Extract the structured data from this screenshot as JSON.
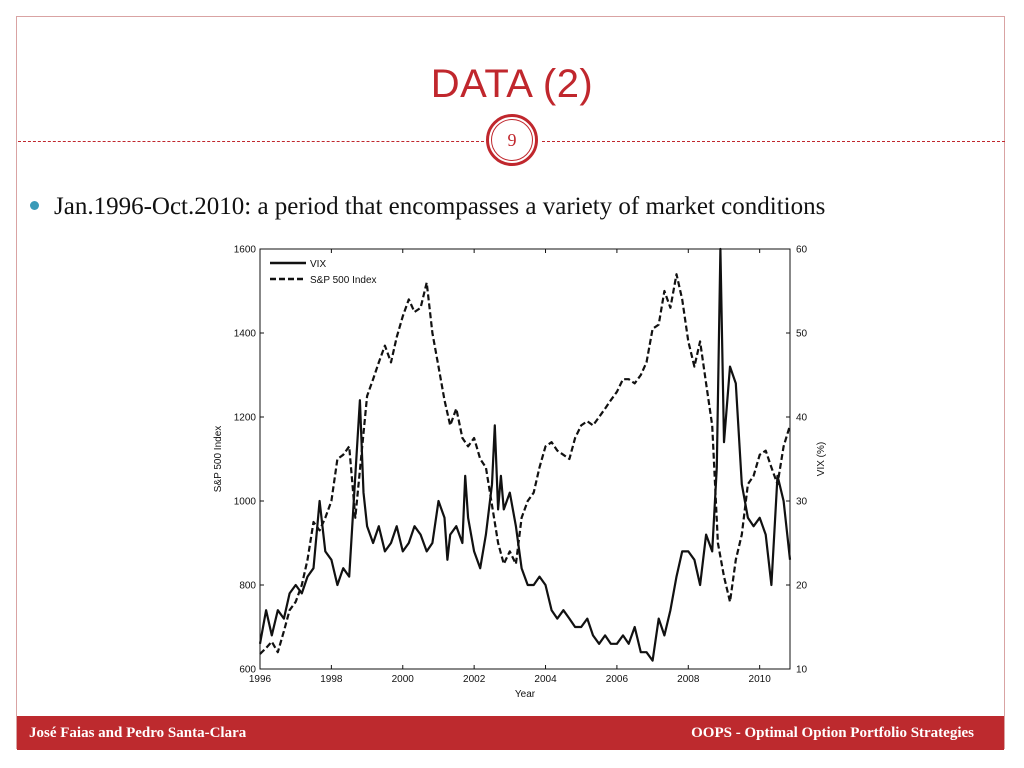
{
  "slide": {
    "title": "DATA (2)",
    "page_number": "9",
    "bullet": "Jan.1996-Oct.2010: a period that encompasses a variety of market conditions",
    "footer_left": "José Faias and Pedro Santa-Clara",
    "footer_right": "OOPS - Optimal Option Portfolio Strategies",
    "accent_color": "#c0272d",
    "bullet_color": "#3b9bb8"
  },
  "chart_data": {
    "type": "line",
    "xlabel": "Year",
    "ylabel": "S&P 500 Index",
    "ylabel_right": "VIX (%)",
    "xlim": [
      1996,
      2010.85
    ],
    "ylim": [
      600,
      1600
    ],
    "ylim_right": [
      10,
      60
    ],
    "x_ticks": [
      1996,
      1998,
      2000,
      2002,
      2004,
      2006,
      2008,
      2010
    ],
    "y_ticks": [
      600,
      800,
      1000,
      1200,
      1400,
      1600
    ],
    "y_ticks_right": [
      10,
      20,
      30,
      40,
      50,
      60
    ],
    "legend_position": "top-left",
    "grid": false,
    "series": [
      {
        "name": "VIX",
        "axis": "right",
        "style": "solid",
        "x": [
          1996.0,
          1996.17,
          1996.33,
          1996.5,
          1996.67,
          1996.83,
          1997.0,
          1997.17,
          1997.33,
          1997.5,
          1997.67,
          1997.83,
          1998.0,
          1998.17,
          1998.33,
          1998.5,
          1998.67,
          1998.8,
          1998.9,
          1999.0,
          1999.17,
          1999.33,
          1999.5,
          1999.67,
          1999.83,
          2000.0,
          2000.17,
          2000.33,
          2000.5,
          2000.67,
          2000.83,
          2001.0,
          2001.17,
          2001.25,
          2001.33,
          2001.5,
          2001.67,
          2001.75,
          2001.83,
          2002.0,
          2002.17,
          2002.33,
          2002.5,
          2002.58,
          2002.67,
          2002.75,
          2002.83,
          2003.0,
          2003.17,
          2003.33,
          2003.5,
          2003.67,
          2003.83,
          2004.0,
          2004.17,
          2004.33,
          2004.5,
          2004.67,
          2004.83,
          2005.0,
          2005.17,
          2005.33,
          2005.5,
          2005.67,
          2005.83,
          2006.0,
          2006.17,
          2006.33,
          2006.5,
          2006.67,
          2006.83,
          2007.0,
          2007.17,
          2007.33,
          2007.5,
          2007.67,
          2007.83,
          2008.0,
          2008.17,
          2008.33,
          2008.5,
          2008.67,
          2008.8,
          2008.9,
          2009.0,
          2009.17,
          2009.33,
          2009.5,
          2009.67,
          2009.83,
          2010.0,
          2010.17,
          2010.33,
          2010.42,
          2010.5,
          2010.67,
          2010.85
        ],
        "values": [
          13,
          17,
          14,
          17,
          16,
          19,
          20,
          19,
          21,
          22,
          30,
          24,
          23,
          20,
          22,
          21,
          33,
          42,
          31,
          27,
          25,
          27,
          24,
          25,
          27,
          24,
          25,
          27,
          26,
          24,
          25,
          30,
          28,
          23,
          26,
          27,
          25,
          33,
          28,
          24,
          22,
          26,
          32,
          39,
          29,
          33,
          29,
          31,
          27,
          22,
          20,
          20,
          21,
          20,
          17,
          16,
          17,
          16,
          15,
          15,
          16,
          14,
          13,
          14,
          13,
          13,
          14,
          13,
          15,
          12,
          12,
          11,
          16,
          14,
          17,
          21,
          24,
          24,
          23,
          20,
          26,
          24,
          34,
          60,
          37,
          46,
          44,
          32,
          28,
          27,
          28,
          26,
          20,
          27,
          33,
          30,
          23
        ],
        "values_note": "approximate"
      },
      {
        "name": "S&P 500 Index",
        "axis": "left",
        "style": "dashed",
        "x": [
          1996.0,
          1996.17,
          1996.33,
          1996.5,
          1996.67,
          1996.83,
          1997.0,
          1997.17,
          1997.33,
          1997.5,
          1997.67,
          1997.83,
          1998.0,
          1998.17,
          1998.33,
          1998.5,
          1998.67,
          1998.83,
          1999.0,
          1999.17,
          1999.33,
          1999.5,
          1999.67,
          1999.83,
          2000.0,
          2000.17,
          2000.33,
          2000.5,
          2000.67,
          2000.83,
          2001.0,
          2001.17,
          2001.33,
          2001.5,
          2001.67,
          2001.83,
          2002.0,
          2002.17,
          2002.33,
          2002.5,
          2002.67,
          2002.83,
          2003.0,
          2003.17,
          2003.33,
          2003.5,
          2003.67,
          2003.83,
          2004.0,
          2004.17,
          2004.33,
          2004.5,
          2004.67,
          2004.83,
          2005.0,
          2005.17,
          2005.33,
          2005.5,
          2005.67,
          2005.83,
          2006.0,
          2006.17,
          2006.33,
          2006.5,
          2006.67,
          2006.83,
          2007.0,
          2007.17,
          2007.33,
          2007.5,
          2007.67,
          2007.83,
          2008.0,
          2008.17,
          2008.33,
          2008.5,
          2008.67,
          2008.83,
          2009.0,
          2009.17,
          2009.33,
          2009.5,
          2009.67,
          2009.83,
          2010.0,
          2010.17,
          2010.33,
          2010.5,
          2010.67,
          2010.85
        ],
        "values": [
          636,
          650,
          665,
          640,
          690,
          740,
          760,
          800,
          860,
          950,
          930,
          960,
          1000,
          1100,
          1110,
          1130,
          960,
          1100,
          1250,
          1290,
          1330,
          1370,
          1330,
          1390,
          1440,
          1480,
          1450,
          1460,
          1520,
          1400,
          1320,
          1240,
          1180,
          1220,
          1150,
          1130,
          1150,
          1100,
          1080,
          990,
          900,
          850,
          880,
          850,
          960,
          1000,
          1020,
          1080,
          1130,
          1140,
          1120,
          1110,
          1100,
          1150,
          1180,
          1190,
          1180,
          1200,
          1220,
          1240,
          1260,
          1290,
          1290,
          1280,
          1300,
          1330,
          1410,
          1420,
          1500,
          1460,
          1540,
          1480,
          1380,
          1320,
          1380,
          1280,
          1180,
          900,
          820,
          760,
          860,
          920,
          1040,
          1060,
          1110,
          1120,
          1080,
          1040,
          1130,
          1180
        ],
        "values_note": "approximate"
      }
    ]
  }
}
